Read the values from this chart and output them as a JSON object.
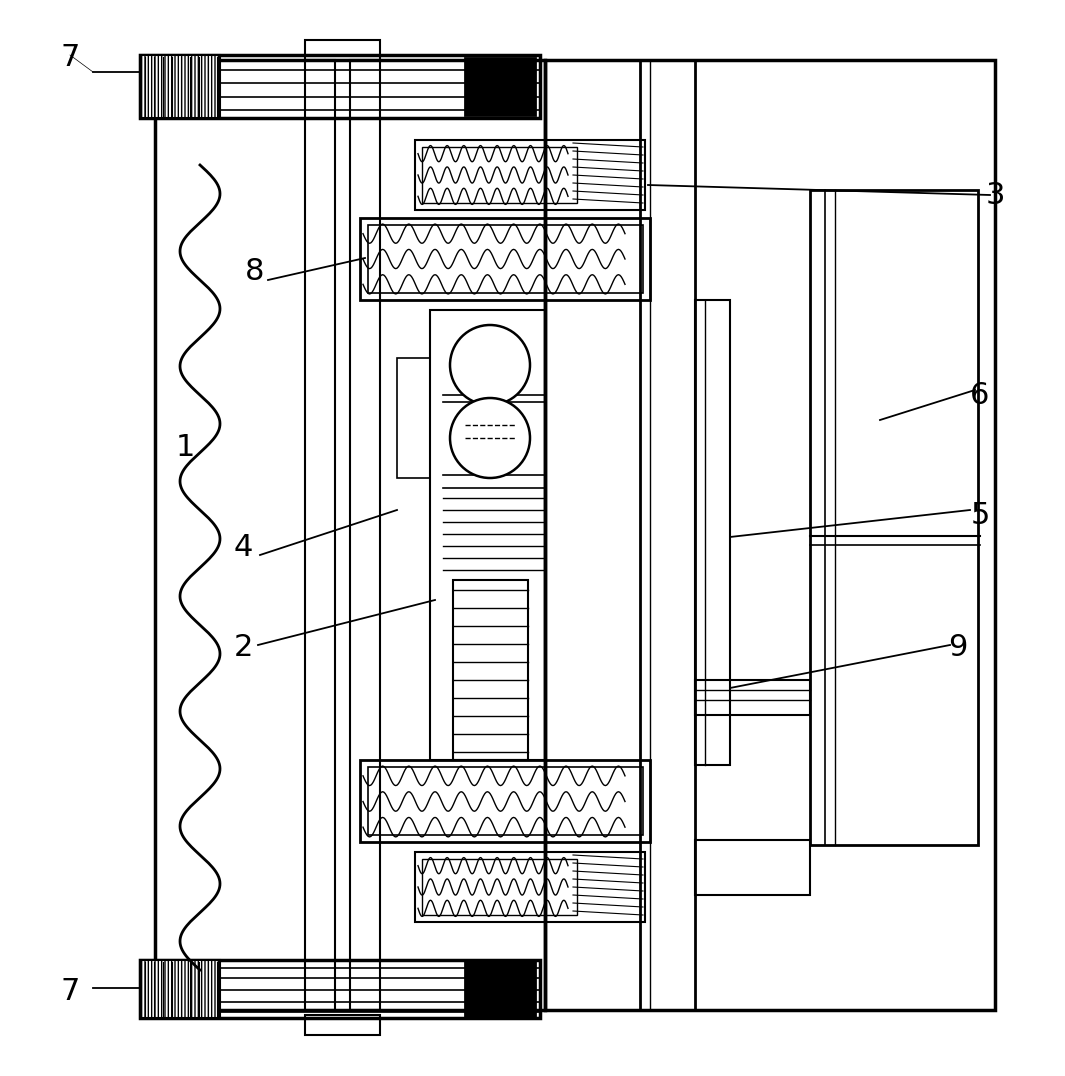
{
  "bg_color": "#ffffff",
  "line_color": "#000000",
  "fig_width": 10.65,
  "fig_height": 10.76,
  "dpi": 100
}
